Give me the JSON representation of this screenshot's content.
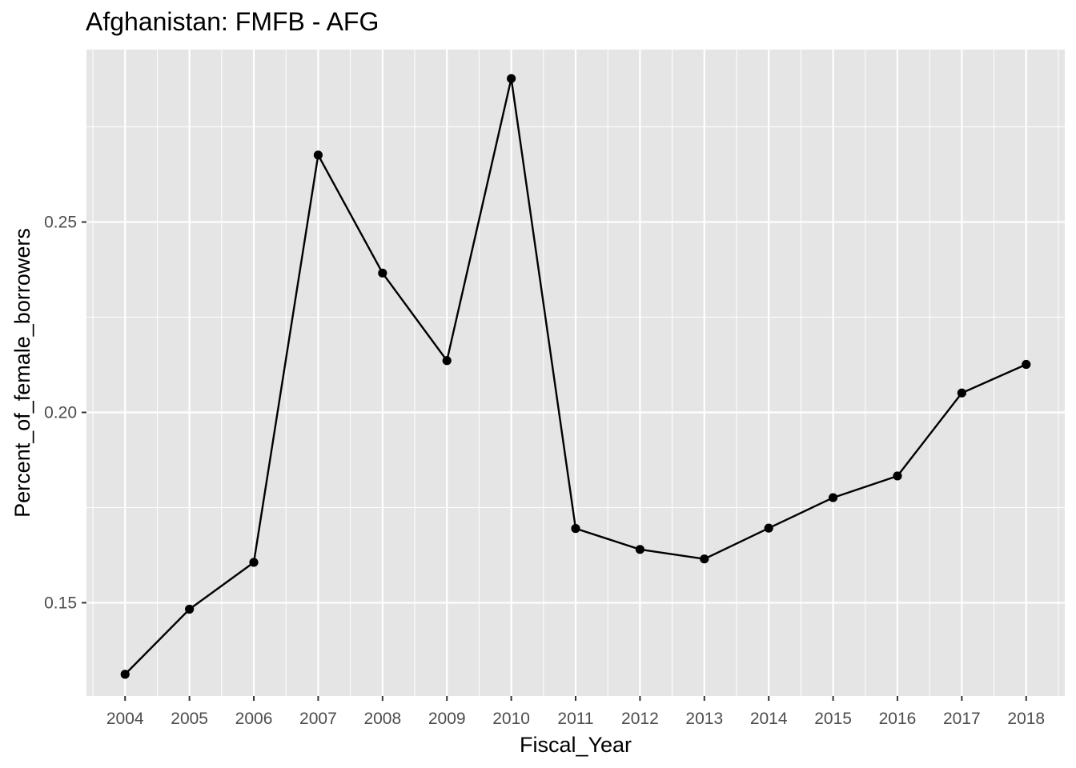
{
  "chart_data": {
    "type": "line",
    "title": "Afghanistan:  FMFB - AFG",
    "xlabel": "Fiscal_Year",
    "ylabel": "Percent_of_female_borrowers",
    "x": [
      "2004",
      "2005",
      "2006",
      "2007",
      "2008",
      "2009",
      "2010",
      "2011",
      "2012",
      "2013",
      "2014",
      "2015",
      "2016",
      "2017",
      "2018"
    ],
    "series": [
      {
        "values": [
          0.1312,
          0.1483,
          0.1606,
          0.2676,
          0.2366,
          0.2136,
          0.2877,
          0.1695,
          0.164,
          0.1615,
          0.1696,
          0.1776,
          0.1833,
          0.2051,
          0.2126
        ]
      }
    ],
    "yticks": [
      0.15,
      0.2,
      0.25
    ],
    "ytick_labels": [
      "0.15",
      "0.20",
      "0.25"
    ],
    "ylim": [
      0.1255,
      0.2953
    ],
    "grid": true,
    "colors": {
      "panel": "#e5e5e5",
      "grid": "#ffffff",
      "line": "#000000",
      "point": "#000000",
      "tick_text": "#4d4d4d"
    }
  }
}
